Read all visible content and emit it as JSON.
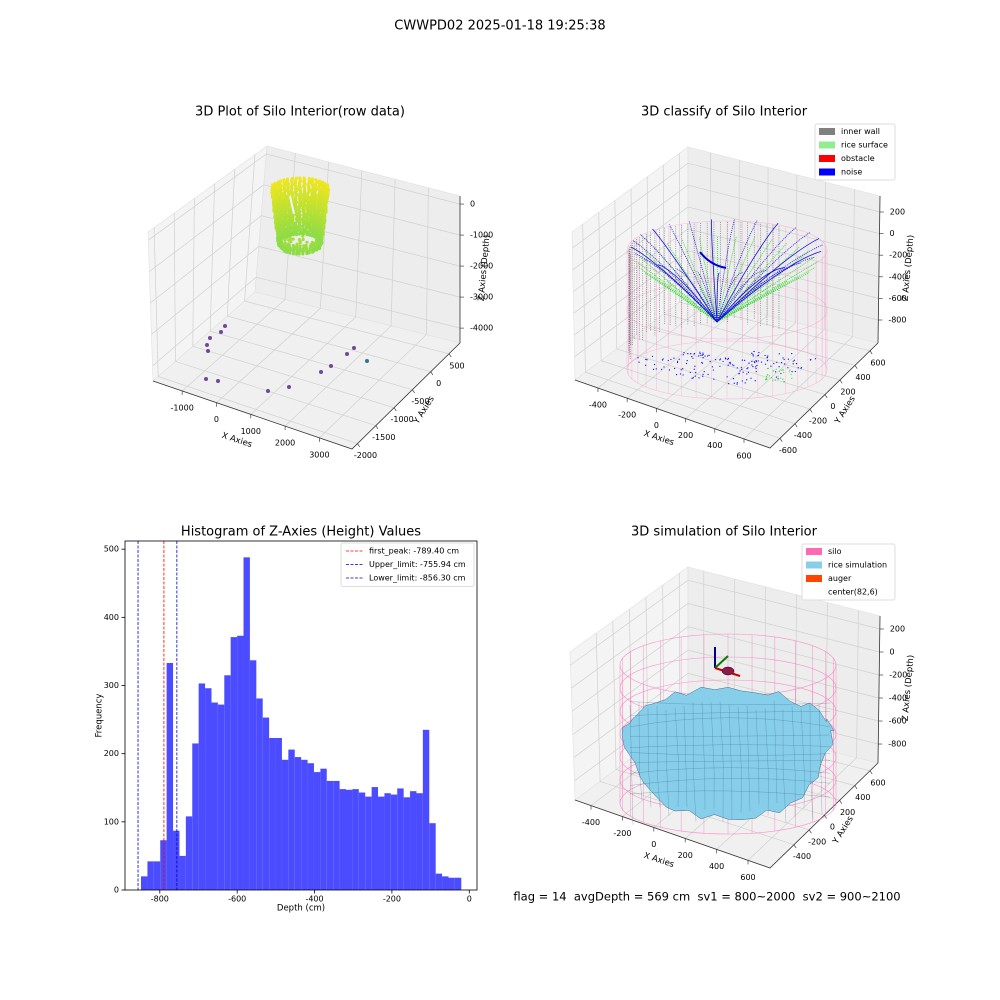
{
  "title": "CWWPD02 2025-01-18 19:25:38",
  "chart_data": [
    {
      "type": "scatter3d",
      "title": "3D Plot of Silo Interior(row data)",
      "xlabel": "X Axies",
      "ylabel": "Y Axies",
      "zlabel": "Z Axies (Depth)",
      "xlim": [
        -1850,
        3950
      ],
      "xticks": [
        -1000,
        0,
        1000,
        2000,
        3000
      ],
      "ylim": [
        -2150,
        800
      ],
      "yticks": [
        -2000,
        -1500,
        -1000,
        -500,
        0,
        500
      ],
      "zlim": [
        -4480,
        260
      ],
      "zticks": [
        -4000,
        -3000,
        -2000,
        -1000,
        0
      ],
      "grid": true
    },
    {
      "type": "scatter3d",
      "title": "3D classify of Silo Interior",
      "xlabel": "X Axies",
      "ylabel": "Y Axies",
      "zlabel": "Z Axies (Depth)",
      "xlim": [
        -557,
        778
      ],
      "xticks": [
        -400,
        -200,
        0,
        200,
        400,
        600
      ],
      "ylim": [
        -733,
        707
      ],
      "yticks": [
        -600,
        -400,
        -200,
        0,
        200,
        400,
        600
      ],
      "zlim": [
        -1013,
        348
      ],
      "zticks": [
        -800,
        -600,
        -400,
        -200,
        0,
        200
      ],
      "grid": true,
      "series": [
        {
          "name": "inner wall",
          "color": "#808080"
        },
        {
          "name": "rice surface",
          "color": "#90ee90"
        },
        {
          "name": "obstacle",
          "color": "#ff0000"
        },
        {
          "name": "noise",
          "color": "#0000ff"
        }
      ],
      "legend": "upper right"
    },
    {
      "type": "histogram",
      "title": "Histogram of Z-Axies (Height) Values",
      "xlabel": "Depth (cm)",
      "ylabel": "Frequency",
      "color": "#4b4bff",
      "bins": [
        -848.6,
        -832.0,
        -815.5,
        -798.9,
        -782.4,
        -765.8,
        -749.2,
        -732.7,
        -716.1,
        -699.6,
        -683.0,
        -666.4,
        -649.9,
        -633.3,
        -616.8,
        -600.2,
        -583.6,
        -567.1,
        -550.5,
        -534.0,
        -517.4,
        -500.8,
        -484.3,
        -467.7,
        -451.2,
        -434.6,
        -418.0,
        -401.5,
        -384.9,
        -368.4,
        -351.8,
        -335.2,
        -318.7,
        -302.1,
        -285.6,
        -269.0,
        -252.4,
        -235.9,
        -219.3,
        -202.8,
        -186.2,
        -169.6,
        -153.1,
        -136.5,
        -120.0,
        -103.4,
        -86.8,
        -70.3,
        -53.7,
        -37.2,
        -20.6
      ],
      "counts": [
        20,
        42,
        42,
        73,
        333,
        87,
        50,
        108,
        215,
        303,
        296,
        275,
        272,
        315,
        371,
        373,
        488,
        337,
        281,
        253,
        223,
        223,
        191,
        206,
        195,
        191,
        186,
        173,
        178,
        160,
        160,
        148,
        147,
        148,
        143,
        137,
        151,
        137,
        142,
        140,
        149,
        136,
        145,
        142,
        235,
        98,
        24,
        20,
        18,
        18
      ],
      "xlim": [
        -890,
        20
      ],
      "xticks": [
        -800,
        -600,
        -400,
        -200,
        0
      ],
      "ylim": [
        0,
        512
      ],
      "yticks": [
        0,
        100,
        200,
        300,
        400,
        500
      ],
      "grid": false,
      "lines": [
        {
          "name": "first_peak: -789.40 cm",
          "value": -789.4,
          "color": "#ff0000"
        },
        {
          "name": "Upper_limit: -755.94 cm",
          "value": -755.94,
          "color": "#0000cc"
        },
        {
          "name": "Lower_limit: -856.30 cm",
          "value": -856.3,
          "color": "#0000cc"
        }
      ],
      "legend": "upper right"
    },
    {
      "type": "surface3d",
      "title": "3D simulation of Silo Interior",
      "xlabel": "X Axies",
      "ylabel": "Y Axies",
      "zlabel": "Z Axies (Depth)",
      "xlim": [
        -502,
        740
      ],
      "xticks": [
        -400,
        -200,
        0,
        200,
        400,
        600
      ],
      "ylim": [
        -715,
        705
      ],
      "yticks": [
        -400,
        -200,
        0,
        200,
        400,
        600
      ],
      "zlim": [
        -965,
        313
      ],
      "zticks": [
        -800,
        -600,
        -400,
        -200,
        0,
        200
      ],
      "grid": true,
      "series": [
        {
          "name": "silo",
          "color": "#ff69b4"
        },
        {
          "name": "rice simulation",
          "color": "#87ceeb"
        },
        {
          "name": "auger",
          "color": "#ff4500"
        },
        {
          "name": "center(82,6)",
          "color": "#ffffff"
        }
      ],
      "legend": "upper right",
      "annotation": "flag = 14  avgDepth = 569 cm  sv1 = 800~2000  sv2 = 900~2100"
    }
  ]
}
